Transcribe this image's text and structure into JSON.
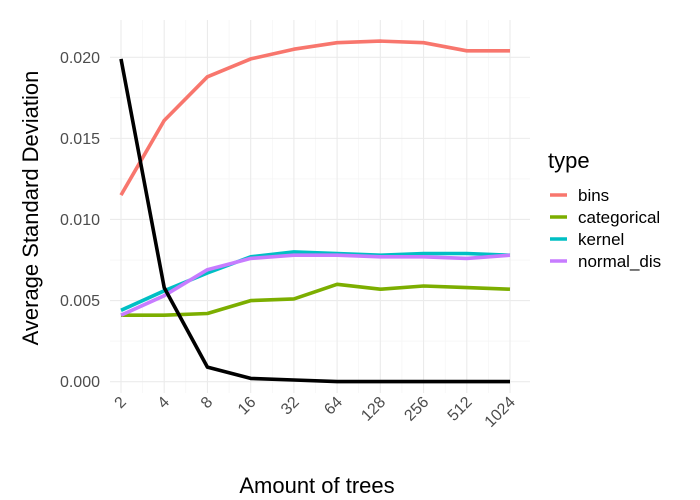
{
  "chart_data": {
    "type": "line",
    "xlabel": "Amount of trees",
    "ylabel": "Average Standard Deviation",
    "x_scale": "log2",
    "x": [
      2,
      4,
      8,
      16,
      32,
      64,
      128,
      256,
      512,
      1024
    ],
    "x_tick_labels": [
      "2",
      "4",
      "8",
      "16",
      "32",
      "64",
      "128",
      "256",
      "512",
      "1024"
    ],
    "ylim": [
      -0.0007,
      0.0223
    ],
    "y_ticks": [
      0.0,
      0.005,
      0.01,
      0.015,
      0.02
    ],
    "y_tick_labels": [
      "0.000",
      "0.005",
      "0.010",
      "0.015",
      "0.020"
    ],
    "grid": true,
    "legend": {
      "title": "type",
      "position": "right"
    },
    "series": [
      {
        "name": "bins",
        "color": "#F8766D",
        "in_legend": true,
        "values": [
          0.0115,
          0.0161,
          0.0188,
          0.0199,
          0.0205,
          0.0209,
          0.021,
          0.0209,
          0.0204,
          0.0204
        ]
      },
      {
        "name": "categorical",
        "color": "#7CAE00",
        "in_legend": true,
        "values": [
          0.0041,
          0.0041,
          0.0042,
          0.005,
          0.0051,
          0.006,
          0.0057,
          0.0059,
          0.0058,
          0.0057
        ]
      },
      {
        "name": "kernel",
        "color": "#00BFC4",
        "in_legend": true,
        "values": [
          0.0044,
          0.0056,
          0.0067,
          0.0077,
          0.008,
          0.0079,
          0.0078,
          0.0079,
          0.0079,
          0.0078
        ]
      },
      {
        "name": "normal_dis",
        "color": "#C77CFF",
        "in_legend": true,
        "values": [
          0.0041,
          0.0053,
          0.0069,
          0.0076,
          0.0078,
          0.0078,
          0.0077,
          0.0077,
          0.0076,
          0.0078
        ]
      },
      {
        "color": "#000000",
        "in_legend": false,
        "values": [
          0.0199,
          0.0058,
          0.0009,
          0.0002,
          0.0001,
          0.0,
          0.0,
          0.0,
          0.0,
          0.0
        ]
      }
    ]
  }
}
